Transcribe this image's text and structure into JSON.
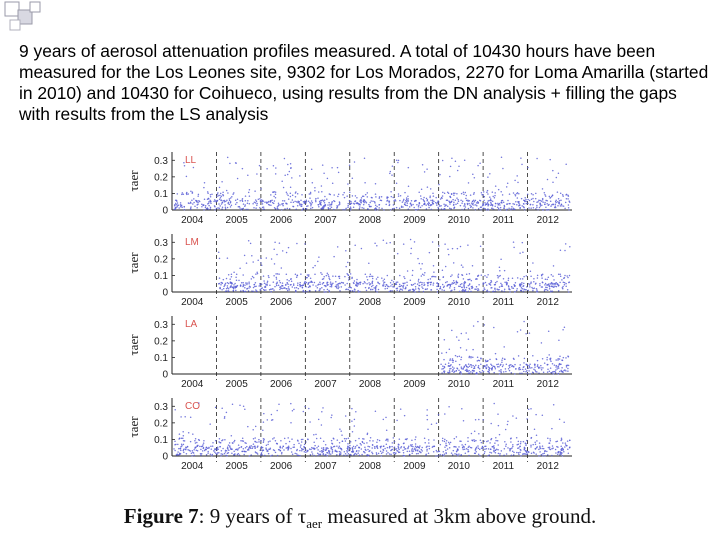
{
  "slide": {
    "text": "9 years of aerosol attenuation profiles measured. A total of 10430 hours have been measured for the Los Leones site, 9302 for Los Morados, 2270 for Loma Amarilla (started in 2010) and 10430 for Coihueco, using results from the DN analysis + filling the gaps with results from the LS analysis"
  },
  "caption": {
    "label": "Figure 7",
    "pre": ": 9 years of τ",
    "sub": "aer",
    "post": " measured at 3km above ground."
  },
  "colors": {
    "points": "#5b5fd6",
    "accent_squares": "#b8b8c8",
    "site_label": "#d9534f"
  },
  "chart_data": [
    {
      "type": "scatter",
      "site_label": "LL",
      "ylabel": "τaer",
      "x_ticks": [
        "2004",
        "2005",
        "2006",
        "2007",
        "2008",
        "2009",
        "2010",
        "2011",
        "2012"
      ],
      "y_ticks": [
        "0.3",
        "0.2",
        "0.1",
        "0"
      ],
      "ylim": [
        0,
        0.35
      ],
      "data_range": [
        "2004",
        "2012"
      ],
      "grid": "dashed vertical at year boundaries"
    },
    {
      "type": "scatter",
      "site_label": "LM",
      "ylabel": "τaer",
      "x_ticks": [
        "2004",
        "2005",
        "2006",
        "2007",
        "2008",
        "2009",
        "2010",
        "2011",
        "2012"
      ],
      "y_ticks": [
        "0.3",
        "0.2",
        "0.1",
        "0"
      ],
      "ylim": [
        0,
        0.35
      ],
      "data_range": [
        "2005",
        "2012"
      ],
      "grid": "dashed vertical at year boundaries"
    },
    {
      "type": "scatter",
      "site_label": "LA",
      "ylabel": "τaer",
      "x_ticks": [
        "2004",
        "2005",
        "2006",
        "2007",
        "2008",
        "2009",
        "2010",
        "2011",
        "2012"
      ],
      "y_ticks": [
        "0.3",
        "0.2",
        "0.1",
        "0"
      ],
      "ylim": [
        0,
        0.35
      ],
      "data_range": [
        "2010",
        "2012"
      ],
      "grid": "dashed vertical at year boundaries"
    },
    {
      "type": "scatter",
      "site_label": "CO",
      "ylabel": "τaer",
      "x_ticks": [
        "2004",
        "2005",
        "2006",
        "2007",
        "2008",
        "2009",
        "2010",
        "2011",
        "2012"
      ],
      "y_ticks": [
        "0.3",
        "0.2",
        "0.1",
        "0"
      ],
      "ylim": [
        0,
        0.35
      ],
      "data_range": [
        "2004",
        "2012"
      ],
      "grid": "dashed vertical at year boundaries"
    }
  ]
}
